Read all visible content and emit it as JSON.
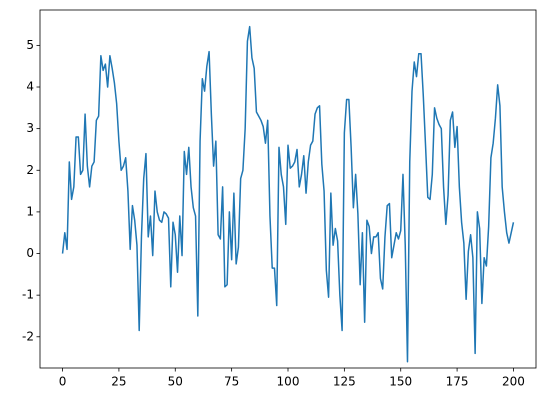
{
  "chart_data": {
    "type": "line",
    "x": [
      0,
      1,
      2,
      3,
      4,
      5,
      6,
      7,
      8,
      9,
      10,
      11,
      12,
      13,
      14,
      15,
      16,
      17,
      18,
      19,
      20,
      21,
      22,
      23,
      24,
      25,
      26,
      27,
      28,
      29,
      30,
      31,
      32,
      33,
      34,
      35,
      36,
      37,
      38,
      39,
      40,
      41,
      42,
      43,
      44,
      45,
      46,
      47,
      48,
      49,
      50,
      51,
      52,
      53,
      54,
      55,
      56,
      57,
      58,
      59,
      60,
      61,
      62,
      63,
      64,
      65,
      66,
      67,
      68,
      69,
      70,
      71,
      72,
      73,
      74,
      75,
      76,
      77,
      78,
      79,
      80,
      81,
      82,
      83,
      84,
      85,
      86,
      87,
      88,
      89,
      90,
      91,
      92,
      93,
      94,
      95,
      96,
      97,
      98,
      99,
      100,
      101,
      102,
      103,
      104,
      105,
      106,
      107,
      108,
      109,
      110,
      111,
      112,
      113,
      114,
      115,
      116,
      117,
      118,
      119,
      120,
      121,
      122,
      123,
      124,
      125,
      126,
      127,
      128,
      129,
      130,
      131,
      132,
      133,
      134,
      135,
      136,
      137,
      138,
      139,
      140,
      141,
      142,
      143,
      144,
      145,
      146,
      147,
      148,
      149,
      150,
      151,
      152,
      153,
      154,
      155,
      156,
      157,
      158,
      159,
      160,
      161,
      162,
      163,
      164,
      165,
      166,
      167,
      168,
      169,
      170,
      171,
      172,
      173,
      174,
      175,
      176,
      177,
      178,
      179,
      180,
      181,
      182,
      183,
      184,
      185,
      186,
      187,
      188,
      189,
      190,
      191,
      192,
      193,
      194,
      195,
      196,
      197,
      198,
      199,
      200
    ],
    "series": [
      {
        "color": "#1f77b4",
        "values": [
          0.0,
          0.5,
          0.1,
          2.2,
          1.3,
          1.6,
          2.8,
          2.8,
          1.9,
          2.0,
          3.35,
          2.1,
          1.6,
          2.1,
          2.2,
          3.2,
          3.3,
          4.75,
          4.4,
          4.55,
          4.0,
          4.75,
          4.45,
          4.1,
          3.6,
          2.7,
          2.0,
          2.1,
          2.3,
          1.5,
          0.1,
          1.15,
          0.8,
          0.2,
          -1.85,
          0.4,
          1.8,
          2.4,
          0.4,
          0.9,
          -0.05,
          1.5,
          1.0,
          0.8,
          0.75,
          1.0,
          0.95,
          0.85,
          -0.8,
          0.75,
          0.45,
          -0.45,
          0.9,
          -0.05,
          2.45,
          1.9,
          2.55,
          1.6,
          1.1,
          0.9,
          -1.5,
          2.7,
          4.2,
          3.9,
          4.5,
          4.85,
          3.35,
          2.1,
          2.7,
          0.45,
          0.35,
          1.6,
          -0.8,
          -0.75,
          1.0,
          -0.15,
          1.45,
          -0.25,
          0.15,
          1.8,
          2.0,
          3.0,
          5.1,
          5.45,
          4.7,
          4.45,
          3.4,
          3.3,
          3.2,
          3.05,
          2.65,
          3.2,
          0.9,
          -0.35,
          -0.35,
          -1.25,
          2.55,
          1.9,
          1.6,
          0.7,
          2.6,
          2.05,
          2.1,
          2.2,
          2.5,
          1.6,
          1.9,
          2.35,
          1.45,
          2.2,
          2.6,
          2.7,
          3.35,
          3.5,
          3.55,
          2.15,
          1.5,
          -0.4,
          -1.05,
          1.45,
          0.2,
          0.6,
          0.3,
          -1.0,
          -1.85,
          2.9,
          3.7,
          3.7,
          2.55,
          1.1,
          1.9,
          0.95,
          -0.75,
          0.5,
          -1.65,
          0.8,
          0.65,
          0.0,
          0.4,
          0.4,
          0.5,
          -0.6,
          -0.85,
          0.4,
          1.15,
          1.2,
          -0.1,
          0.2,
          0.5,
          0.35,
          0.55,
          1.9,
          0.2,
          -2.6,
          2.2,
          3.9,
          4.6,
          4.25,
          4.8,
          4.8,
          3.8,
          2.6,
          1.35,
          1.3,
          1.9,
          3.5,
          3.25,
          3.1,
          3.0,
          1.6,
          0.7,
          1.4,
          3.2,
          3.4,
          2.55,
          3.05,
          1.6,
          0.75,
          0.25,
          -1.1,
          0.05,
          0.45,
          -0.1,
          -2.4,
          1.0,
          0.6,
          -1.2,
          -0.1,
          -0.3,
          0.65,
          2.3,
          2.65,
          3.25,
          4.05,
          3.55,
          1.6,
          1.0,
          0.5,
          0.25,
          0.5,
          0.75
        ]
      }
    ],
    "xlim": [
      -10,
      210
    ],
    "xticks": [
      0,
      25,
      50,
      75,
      100,
      125,
      150,
      175,
      200
    ],
    "ylim": [
      -2.75,
      5.85
    ],
    "yticks": [
      -2,
      -1,
      0,
      1,
      2,
      3,
      4,
      5
    ],
    "grid": false
  }
}
